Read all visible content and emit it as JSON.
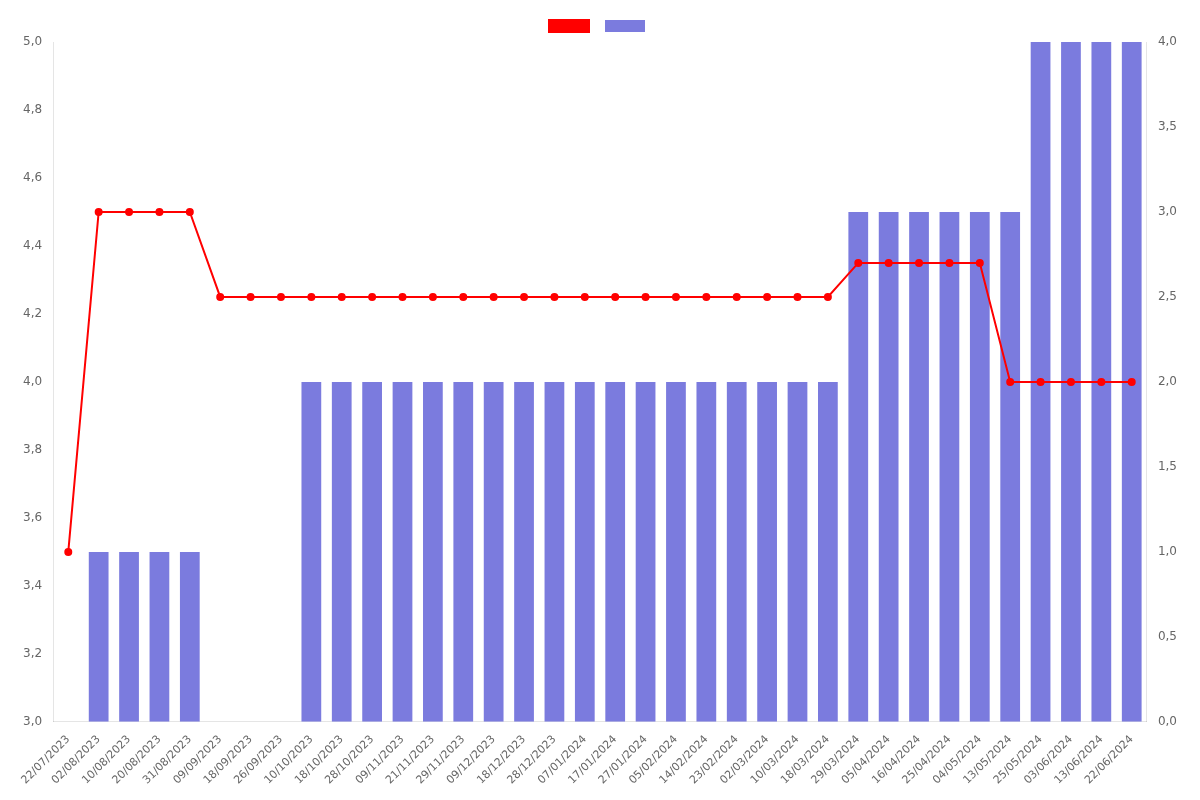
{
  "chart_data": {
    "type": "bar",
    "categories": [
      "22/07/2023",
      "02/08/2023",
      "10/08/2023",
      "20/08/2023",
      "31/08/2023",
      "09/09/2023",
      "18/09/2023",
      "26/09/2023",
      "10/10/2023",
      "18/10/2023",
      "28/10/2023",
      "09/11/2023",
      "21/11/2023",
      "29/11/2023",
      "09/12/2023",
      "18/12/2023",
      "28/12/2023",
      "07/01/2024",
      "17/01/2024",
      "27/01/2024",
      "05/02/2024",
      "14/02/2024",
      "23/02/2024",
      "02/03/2024",
      "10/03/2024",
      "18/03/2024",
      "29/03/2024",
      "05/04/2024",
      "16/04/2024",
      "25/04/2024",
      "04/05/2024",
      "13/05/2024",
      "25/05/2024",
      "03/06/2024",
      "13/06/2024",
      "22/06/2024"
    ],
    "series": [
      {
        "type": "line",
        "color": "#ff0000",
        "marker": "circle",
        "line_style": "solid",
        "values": [
          3.5,
          4.5,
          4.5,
          4.5,
          4.5,
          4.25,
          4.25,
          4.25,
          4.25,
          4.25,
          4.25,
          4.25,
          4.25,
          4.25,
          4.25,
          4.25,
          4.25,
          4.25,
          4.25,
          4.25,
          4.25,
          4.25,
          4.25,
          4.25,
          4.25,
          4.25,
          4.35,
          4.35,
          4.35,
          4.35,
          4.35,
          4.0,
          4.0,
          4.0,
          4.0,
          4.0
        ]
      },
      {
        "type": "bar",
        "color": "#7b7bde",
        "axis": "y2",
        "values": [
          0,
          1,
          1,
          1,
          1,
          0,
          0,
          0,
          2,
          2,
          2,
          2,
          2,
          2,
          2,
          2,
          2,
          2,
          2,
          2,
          2,
          2,
          2,
          2,
          2,
          2,
          3,
          3,
          3,
          3,
          3,
          3,
          4,
          4,
          4,
          4
        ]
      }
    ],
    "ylim": [
      3.0,
      5.0
    ],
    "yticks": [
      {
        "value": 3.0,
        "label": "3,0"
      },
      {
        "value": 3.2,
        "label": "3,2"
      },
      {
        "value": 3.4,
        "label": "3,4"
      },
      {
        "value": 3.6,
        "label": "3,6"
      },
      {
        "value": 3.8,
        "label": "3,8"
      },
      {
        "value": 4.0,
        "label": "4,0"
      },
      {
        "value": 4.2,
        "label": "4,2"
      },
      {
        "value": 4.4,
        "label": "4,4"
      },
      {
        "value": 4.6,
        "label": "4,6"
      },
      {
        "value": 4.8,
        "label": "4,8"
      },
      {
        "value": 5.0,
        "label": "5,0"
      }
    ],
    "y2lim": [
      0,
      4.0
    ],
    "y2ticks": [
      {
        "value": 0,
        "label": "0,0"
      },
      {
        "value": 0.5,
        "label": "0,5"
      },
      {
        "value": 1.0,
        "label": "1,0"
      },
      {
        "value": 1.5,
        "label": "1,5"
      },
      {
        "value": 2.0,
        "label": "2,0"
      },
      {
        "value": 2.5,
        "label": "2,5"
      },
      {
        "value": 3.0,
        "label": "3,0"
      },
      {
        "value": 3.5,
        "label": "3,5"
      },
      {
        "value": 4.0,
        "label": "4,0"
      }
    ],
    "grid": false,
    "legend": "top"
  }
}
